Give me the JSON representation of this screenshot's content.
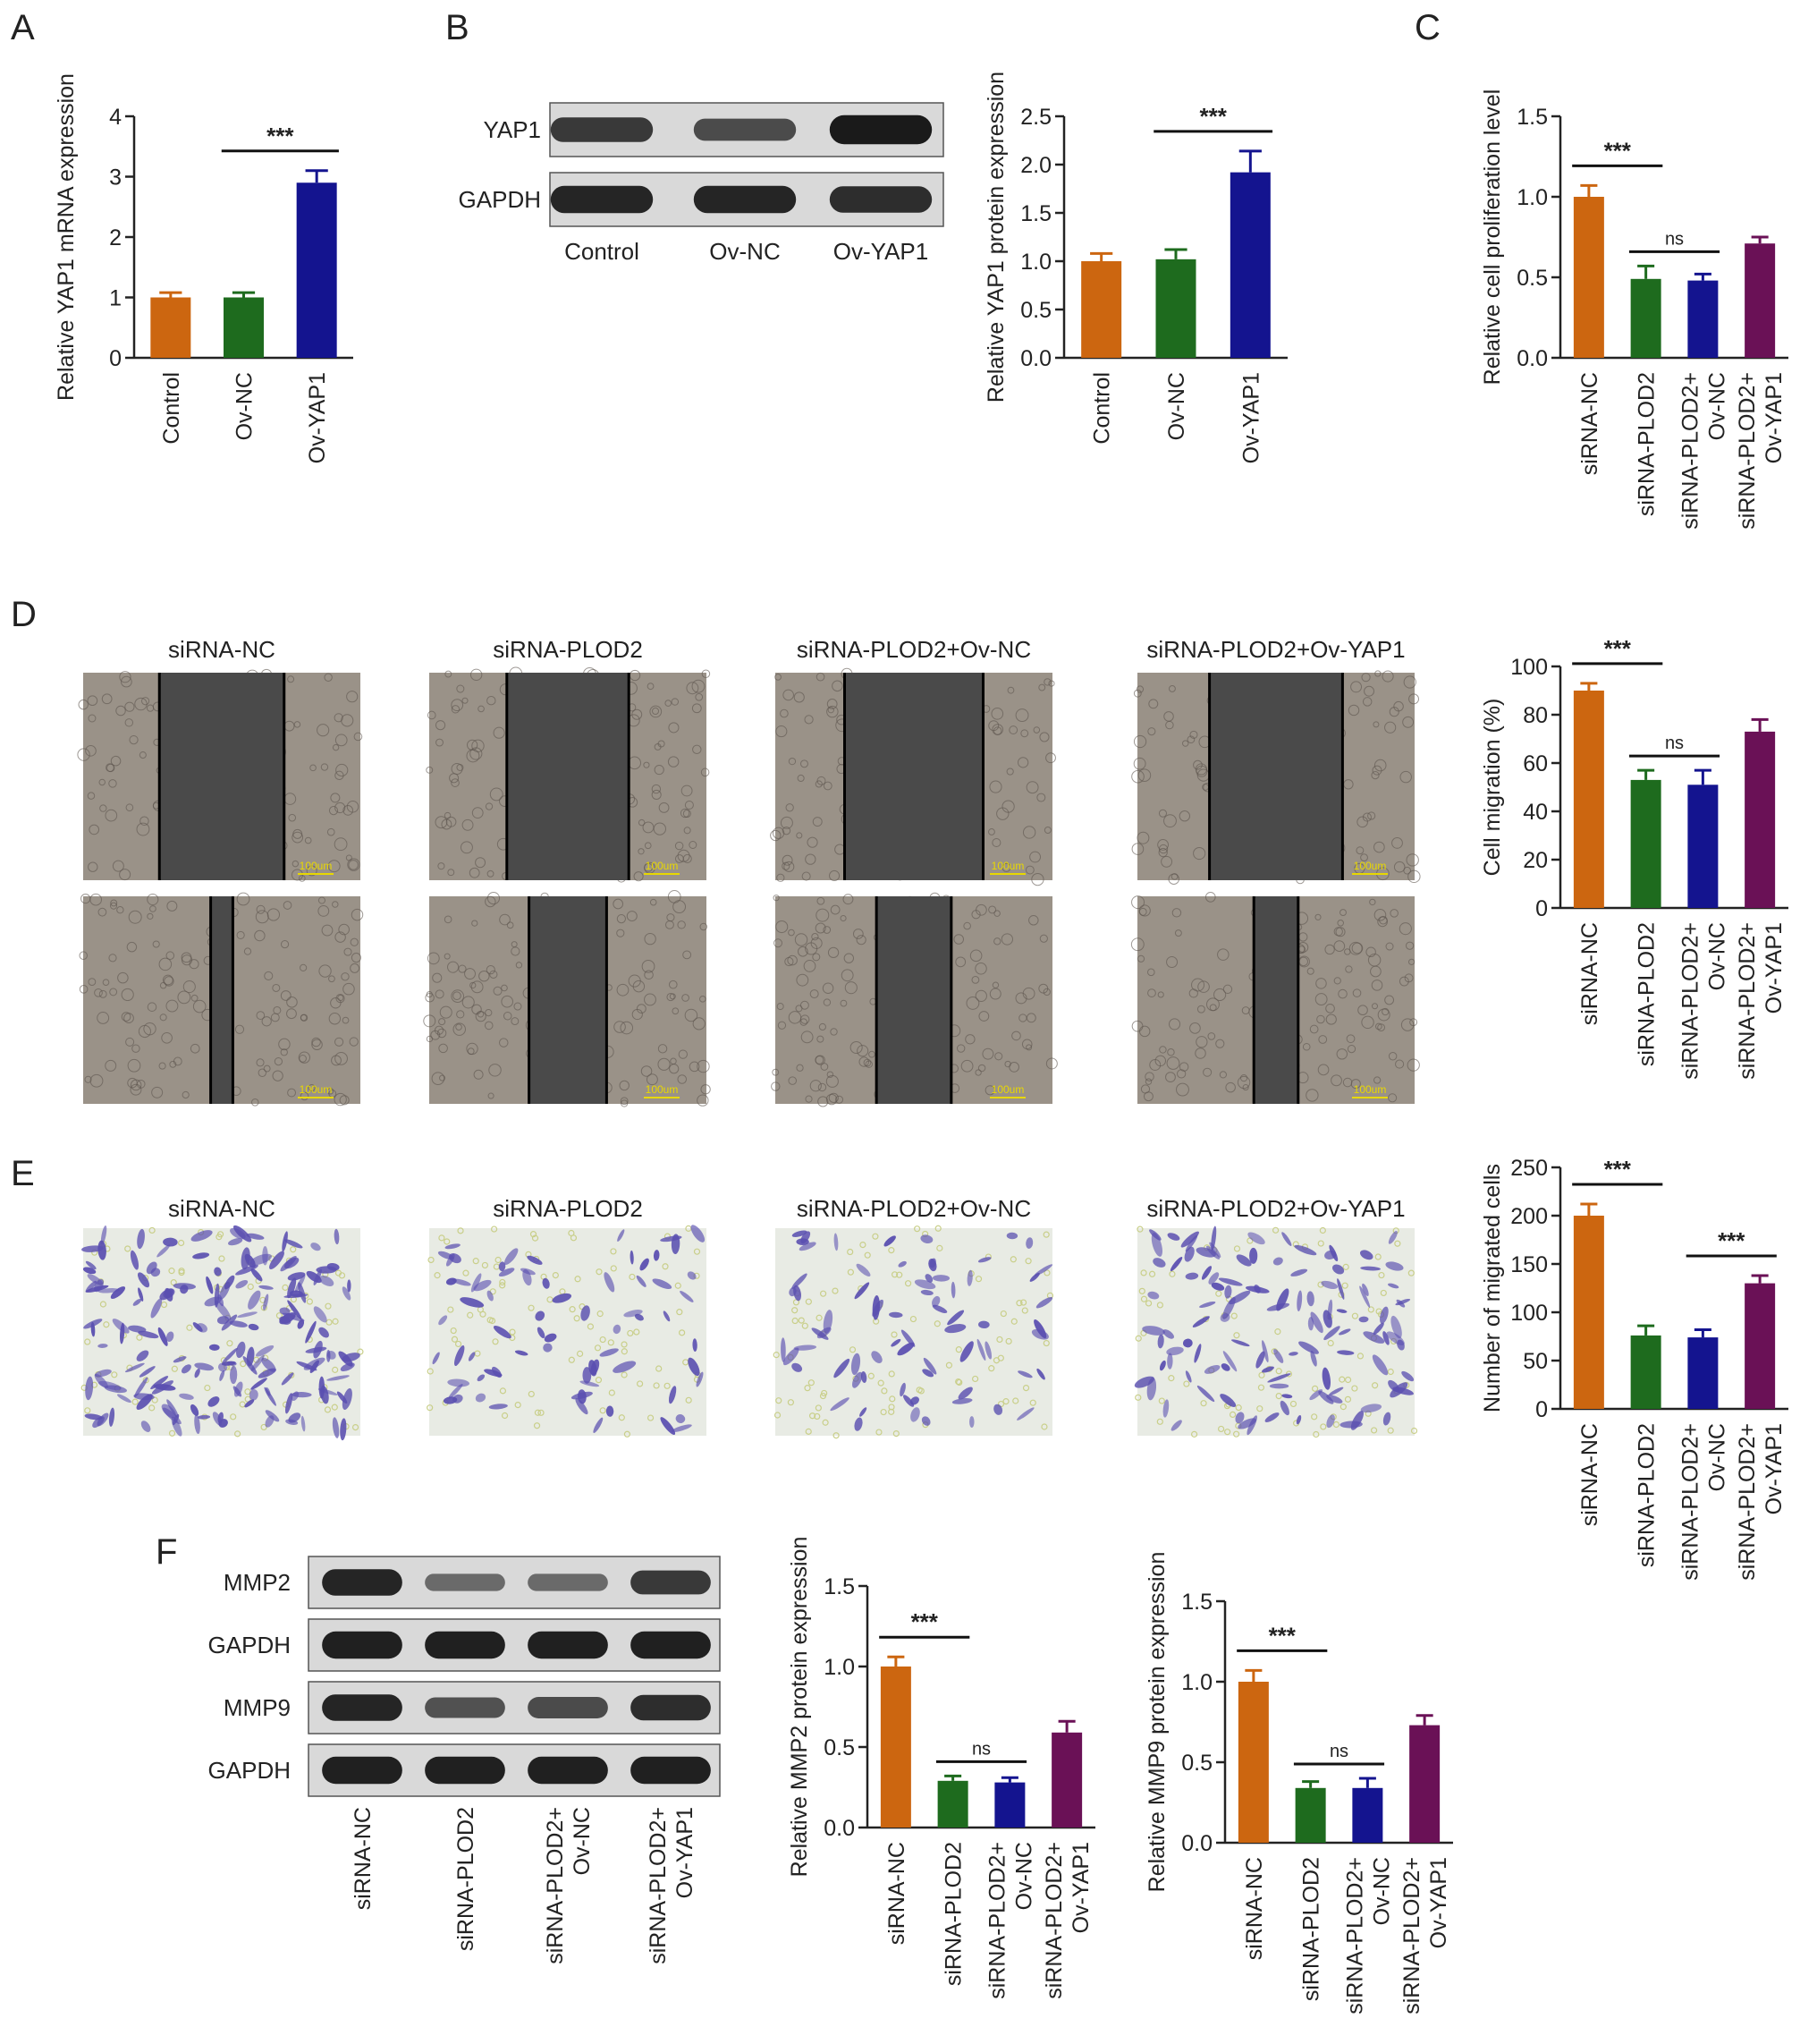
{
  "colors": {
    "orange": "#CC6610",
    "green": "#1E6B1E",
    "blue": "#14148F",
    "purple": "#6A1156",
    "blot_bg": "#D9D9D9",
    "band": "#1A1A1A",
    "scratch_bg": "#4A4A4A",
    "scratch_cells": "#9A9288",
    "stain_bg": "#E8EBE4",
    "stain_cells": "#5A4FB0"
  },
  "panels": {
    "A": "A",
    "B": "B",
    "C": "C",
    "D": "D",
    "E": "E",
    "F": "F"
  },
  "blot_B": {
    "rows": [
      "YAP1",
      "GAPDH"
    ],
    "lanes": [
      "Control",
      "Ov-NC",
      "Ov-YAP1"
    ],
    "band_intensity": [
      [
        0.75,
        0.6,
        1.0
      ],
      [
        0.9,
        0.9,
        0.85
      ]
    ]
  },
  "blot_F": {
    "rows": [
      "MMP2",
      "GAPDH",
      "MMP9",
      "GAPDH"
    ],
    "lanes": [
      "siRNA-NC",
      "siRNA-PLOD2",
      "siRNA-PLOD2+ Ov-NC",
      "siRNA-PLOD2+ Ov-YAP1"
    ],
    "band_intensity": [
      [
        0.9,
        0.35,
        0.35,
        0.75
      ],
      [
        0.95,
        0.95,
        0.95,
        0.95
      ],
      [
        0.9,
        0.55,
        0.6,
        0.85
      ],
      [
        0.95,
        0.95,
        0.95,
        0.95
      ]
    ]
  },
  "images_D": {
    "titles": [
      "siRNA-NC",
      "siRNA-PLOD2",
      "siRNA-PLOD2+Ov-NC",
      "siRNA-PLOD2+Ov-YAP1"
    ],
    "scale": [
      "100um",
      "100um",
      "100um",
      "100um"
    ],
    "gap_top": [
      0.45,
      0.44,
      0.5,
      0.48
    ],
    "gap_bottom": [
      0.08,
      0.28,
      0.27,
      0.16
    ]
  },
  "images_E": {
    "titles": [
      "siRNA-NC",
      "siRNA-PLOD2",
      "siRNA-PLOD2+Ov-NC",
      "siRNA-PLOD2+Ov-YAP1"
    ],
    "cell_density": [
      1.0,
      0.4,
      0.4,
      0.65
    ]
  },
  "chart_data": [
    {
      "id": "A",
      "type": "bar",
      "categories": [
        "Control",
        "Ov-NC",
        "Ov-YAP1"
      ],
      "values": [
        1.0,
        1.0,
        2.9
      ],
      "errors": [
        0.08,
        0.08,
        0.2
      ],
      "colors": [
        "#CC6610",
        "#1E6B1E",
        "#14148F"
      ],
      "ylabel": "Relative YAP1 mRNA expression",
      "ylim": [
        0,
        4
      ],
      "yticks": [
        "0",
        "1",
        "2",
        "3",
        "4"
      ],
      "significance": [
        {
          "from": 1,
          "to": 2,
          "label": "***"
        }
      ]
    },
    {
      "id": "B",
      "type": "bar",
      "categories": [
        "Control",
        "Ov-NC",
        "Ov-YAP1"
      ],
      "values": [
        1.0,
        1.02,
        1.92
      ],
      "errors": [
        0.08,
        0.1,
        0.22
      ],
      "colors": [
        "#CC6610",
        "#1E6B1E",
        "#14148F"
      ],
      "ylabel": "Relative YAP1 protein expression",
      "ylim": [
        0,
        2.5
      ],
      "yticks": [
        "0.0",
        "0.5",
        "1.0",
        "1.5",
        "2.0",
        "2.5"
      ],
      "significance": [
        {
          "from": 1,
          "to": 2,
          "label": "***"
        }
      ]
    },
    {
      "id": "C",
      "type": "bar",
      "categories": [
        "siRNA-NC",
        "siRNA-PLOD2",
        "siRNA-PLOD2+ Ov-NC",
        "siRNA-PLOD2+ Ov-YAP1"
      ],
      "values": [
        1.0,
        0.49,
        0.48,
        0.71
      ],
      "errors": [
        0.07,
        0.08,
        0.04,
        0.04
      ],
      "colors": [
        "#CC6610",
        "#1E6B1E",
        "#14148F",
        "#6A1156"
      ],
      "ylabel": "Relative cell proliferation level",
      "ylim": [
        0,
        1.5
      ],
      "yticks": [
        "0.0",
        "0.5",
        "1.0",
        "1.5"
      ],
      "significance": [
        {
          "from": 0,
          "to": 1,
          "label": "***"
        },
        {
          "from": 1,
          "to": 2,
          "label": "ns"
        }
      ]
    },
    {
      "id": "D",
      "type": "bar",
      "categories": [
        "siRNA-NC",
        "siRNA-PLOD2",
        "siRNA-PLOD2+ Ov-NC",
        "siRNA-PLOD2+ Ov-YAP1"
      ],
      "values": [
        90,
        53,
        51,
        73
      ],
      "errors": [
        3,
        4,
        6,
        5
      ],
      "colors": [
        "#CC6610",
        "#1E6B1E",
        "#14148F",
        "#6A1156"
      ],
      "ylabel": "Cell migration (%)",
      "ylim": [
        0,
        100
      ],
      "yticks": [
        "0",
        "20",
        "40",
        "60",
        "80",
        "100"
      ],
      "significance": [
        {
          "from": 0,
          "to": 1,
          "label": "***"
        },
        {
          "from": 1,
          "to": 2,
          "label": "ns"
        }
      ]
    },
    {
      "id": "E",
      "type": "bar",
      "categories": [
        "siRNA-NC",
        "siRNA-PLOD2",
        "siRNA-PLOD2+ Ov-NC",
        "siRNA-PLOD2+ Ov-YAP1"
      ],
      "values": [
        200,
        76,
        74,
        130
      ],
      "errors": [
        12,
        10,
        8,
        8
      ],
      "colors": [
        "#CC6610",
        "#1E6B1E",
        "#14148F",
        "#6A1156"
      ],
      "ylabel": "Number of migrated cells",
      "ylim": [
        0,
        250
      ],
      "yticks": [
        "0",
        "50",
        "100",
        "150",
        "200",
        "250"
      ],
      "significance": [
        {
          "from": 0,
          "to": 1,
          "label": "***"
        },
        {
          "from": 2,
          "to": 3,
          "label": "***"
        }
      ]
    },
    {
      "id": "F1",
      "type": "bar",
      "categories": [
        "siRNA-NC",
        "siRNA-PLOD2",
        "siRNA-PLOD2+ Ov-NC",
        "siRNA-PLOD2+ Ov-YAP1"
      ],
      "values": [
        1.0,
        0.29,
        0.28,
        0.59
      ],
      "errors": [
        0.06,
        0.03,
        0.03,
        0.07
      ],
      "colors": [
        "#CC6610",
        "#1E6B1E",
        "#14148F",
        "#6A1156"
      ],
      "ylabel": "Relative MMP2 protein expression",
      "ylim": [
        0,
        1.5
      ],
      "yticks": [
        "0.0",
        "0.5",
        "1.0",
        "1.5"
      ],
      "significance": [
        {
          "from": 0,
          "to": 1,
          "label": "***"
        },
        {
          "from": 1,
          "to": 2,
          "label": "ns"
        }
      ]
    },
    {
      "id": "F2",
      "type": "bar",
      "categories": [
        "siRNA-NC",
        "siRNA-PLOD2",
        "siRNA-PLOD2+ Ov-NC",
        "siRNA-PLOD2+ Ov-YAP1"
      ],
      "values": [
        1.0,
        0.34,
        0.34,
        0.73
      ],
      "errors": [
        0.07,
        0.04,
        0.06,
        0.06
      ],
      "colors": [
        "#CC6610",
        "#1E6B1E",
        "#14148F",
        "#6A1156"
      ],
      "ylabel": "Relative MMP9 protein expression",
      "ylim": [
        0,
        1.5
      ],
      "yticks": [
        "0.0",
        "0.5",
        "1.0",
        "1.5"
      ],
      "significance": [
        {
          "from": 0,
          "to": 1,
          "label": "***"
        },
        {
          "from": 1,
          "to": 2,
          "label": "ns"
        }
      ]
    }
  ]
}
